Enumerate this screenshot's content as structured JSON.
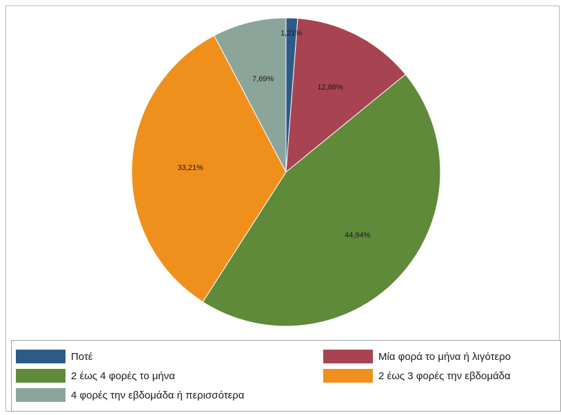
{
  "chart_data": {
    "type": "pie",
    "title": "",
    "slices": [
      {
        "label": "Ποτέ",
        "value": 1.21,
        "value_label": "1,21%",
        "color": "#2c5b88"
      },
      {
        "label": "Μία φορά το μήνα ή λιγότερο",
        "value": 12.86,
        "value_label": "12,86%",
        "color": "#a84452"
      },
      {
        "label": "2 έως 4 φορές το μήνα",
        "value": 44.94,
        "value_label": "44,94%",
        "color": "#5e8a3a"
      },
      {
        "label": "2 έως 3 φορές την εβδομάδα",
        "value": 33.21,
        "value_label": "33,21%",
        "color": "#f0901c"
      },
      {
        "label": "4 φορές την εβδομάδα ή περισσότερα",
        "value": 7.69,
        "value_label": "7,69%",
        "color": "#8ba59a"
      }
    ],
    "start_angle": "12 o'clock",
    "direction": "clockwise",
    "legend_position": "bottom"
  }
}
